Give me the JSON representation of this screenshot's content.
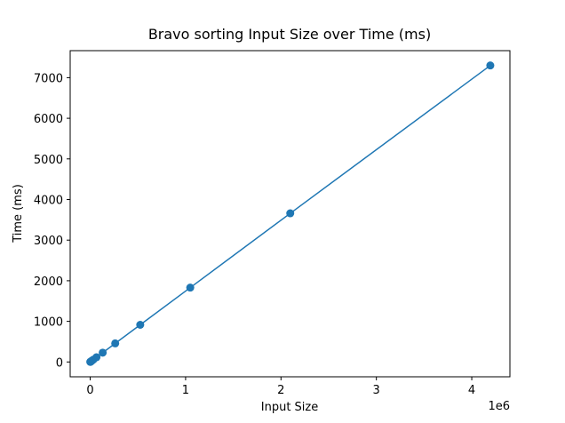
{
  "chart_data": {
    "type": "line",
    "title": "Bravo sorting Input Size over Time (ms)",
    "xlabel": "Input Size",
    "ylabel": "Time (ms)",
    "x_offset_text": "1e6",
    "xlim": [
      -0.21,
      4.4
    ],
    "ylim": [
      -365,
      7665
    ],
    "x_scale_factor": 1000000,
    "xticks": [
      0,
      1,
      2,
      3,
      4
    ],
    "xtick_labels": [
      "0",
      "1",
      "2",
      "3",
      "4"
    ],
    "yticks": [
      0,
      1000,
      2000,
      3000,
      4000,
      5000,
      6000,
      7000
    ],
    "ytick_labels": [
      "0",
      "1000",
      "2000",
      "3000",
      "4000",
      "5000",
      "6000",
      "7000"
    ],
    "grid": false,
    "series": [
      {
        "color": "#1f77b4",
        "marker": "circle",
        "x": [
          1024,
          2048,
          4096,
          8192,
          16384,
          32768,
          65536,
          131072,
          262144,
          524288,
          1048576,
          2097152,
          4194304
        ],
        "y": [
          2,
          4,
          7,
          14,
          29,
          57,
          115,
          229,
          458,
          915,
          1830,
          3660,
          7300
        ]
      }
    ]
  }
}
